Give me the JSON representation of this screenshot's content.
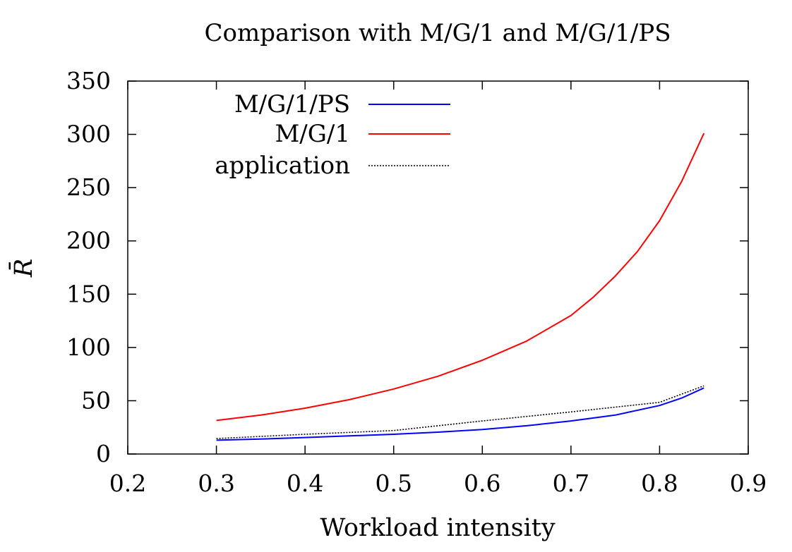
{
  "chart_data": {
    "type": "line",
    "title": "Comparison with M/G/1 and M/G/1/PS",
    "xlabel": "Workload intensity",
    "ylabel": "R̄",
    "xlim": [
      0.2,
      0.9
    ],
    "ylim": [
      0,
      350
    ],
    "xticks": [
      "0.2",
      "0.3",
      "0.4",
      "0.5",
      "0.6",
      "0.7",
      "0.8",
      "0.9"
    ],
    "yticks": [
      "0",
      "50",
      "100",
      "150",
      "200",
      "250",
      "300",
      "350"
    ],
    "legend_position": "top-left",
    "grid": false,
    "series": [
      {
        "name": "M/G/1/PS",
        "color": "#0000ff",
        "style": "solid",
        "points": [
          [
            0.3,
            13
          ],
          [
            0.35,
            14
          ],
          [
            0.4,
            15.5
          ],
          [
            0.45,
            17
          ],
          [
            0.5,
            18.5
          ],
          [
            0.55,
            20.5
          ],
          [
            0.6,
            23
          ],
          [
            0.65,
            26.5
          ],
          [
            0.7,
            31
          ],
          [
            0.75,
            36.5
          ],
          [
            0.8,
            45.5
          ],
          [
            0.825,
            52.5
          ],
          [
            0.85,
            62
          ]
        ]
      },
      {
        "name": "M/G/1",
        "color": "#ff0000",
        "style": "solid",
        "points": [
          [
            0.3,
            31.5
          ],
          [
            0.35,
            36.5
          ],
          [
            0.4,
            43
          ],
          [
            0.45,
            51
          ],
          [
            0.5,
            61
          ],
          [
            0.55,
            73
          ],
          [
            0.6,
            88
          ],
          [
            0.65,
            106
          ],
          [
            0.7,
            130
          ],
          [
            0.725,
            147
          ],
          [
            0.75,
            167
          ],
          [
            0.775,
            190
          ],
          [
            0.8,
            219
          ],
          [
            0.825,
            256
          ],
          [
            0.85,
            301
          ]
        ]
      },
      {
        "name": "application",
        "color": "#000000",
        "style": "dotted",
        "points": [
          [
            0.3,
            14.5
          ],
          [
            0.4,
            18.5
          ],
          [
            0.5,
            22
          ],
          [
            0.6,
            31
          ],
          [
            0.7,
            39.5
          ],
          [
            0.8,
            48.5
          ],
          [
            0.85,
            64
          ]
        ]
      }
    ]
  }
}
